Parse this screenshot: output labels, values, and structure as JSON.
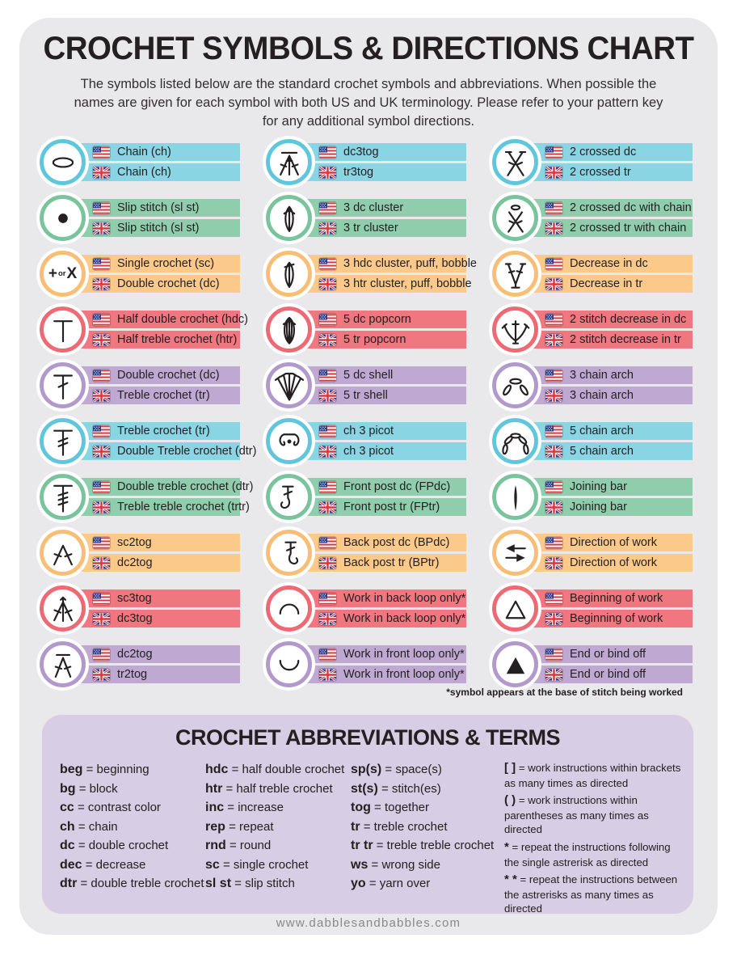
{
  "title": "CROCHET SYMBOLS & DIRECTIONS CHART",
  "subtitle": "The symbols listed below are the standard crochet symbols and abbreviations. When possible the\nnames are given for each symbol with both US and UK terminology. Please refer to your pattern key\nfor any additional symbol directions.",
  "footnote": "*symbol appears at the base of stitch being worked",
  "footer": "www.dabblesandbabbles.com",
  "plus_or_x": {
    "plus": "+",
    "or": "or",
    "x": "X"
  },
  "palette": {
    "card_bg": "#E9E8EA",
    "abbrev_bg": "#D7CDE4",
    "text": "#242021",
    "bands": {
      "blue": "#8AD5E4",
      "green": "#8FCDAC",
      "orange": "#FBCA8B",
      "red": "#F0777F",
      "purple": "#BFA9D3"
    },
    "rings": {
      "blue": "#5FC6DC",
      "green": "#79C49D",
      "orange": "#F8BE76",
      "red": "#ED6A74",
      "purple": "#B199CB"
    },
    "flag_red": "#D23A3F",
    "flag_blue": "#2D3E8C"
  },
  "symbol_columns": [
    [
      {
        "symbol": "chain",
        "color": "blue",
        "us": "Chain (ch)",
        "uk": "Chain (ch)"
      },
      {
        "symbol": "slip-stitch",
        "color": "green",
        "us": "Slip stitch (sl st)",
        "uk": "Slip stitch (sl st)"
      },
      {
        "symbol": "plus-or-x",
        "color": "orange",
        "us": "Single crochet (sc)",
        "uk": "Double crochet (dc)"
      },
      {
        "symbol": "hdc",
        "color": "red",
        "us": "Half double crochet (hdc)",
        "uk": "Half treble crochet (htr)"
      },
      {
        "symbol": "dc",
        "color": "purple",
        "us": "Double crochet (dc)",
        "uk": "Treble crochet (tr)"
      },
      {
        "symbol": "tr",
        "color": "blue",
        "us": "Treble crochet (tr)",
        "uk": "Double Treble crochet (dtr)"
      },
      {
        "symbol": "dtr",
        "color": "green",
        "us": "Double treble crochet (dtr)",
        "uk": "Treble treble crochet (trtr)"
      },
      {
        "symbol": "sc2tog",
        "color": "orange",
        "us": "sc2tog",
        "uk": "dc2tog"
      },
      {
        "symbol": "sc3tog",
        "color": "red",
        "us": "sc3tog",
        "uk": "dc3tog"
      },
      {
        "symbol": "dc2tog",
        "color": "purple",
        "us": "dc2tog",
        "uk": "tr2tog"
      }
    ],
    [
      {
        "symbol": "dc3tog",
        "color": "blue",
        "us": "dc3tog",
        "uk": "tr3tog"
      },
      {
        "symbol": "cluster",
        "color": "green",
        "us": "3 dc cluster",
        "uk": "3 tr cluster"
      },
      {
        "symbol": "puff",
        "color": "orange",
        "us": "3 hdc cluster, puff, bobble",
        "uk": "3 htr cluster, puff, bobble"
      },
      {
        "symbol": "popcorn",
        "color": "red",
        "us": "5 dc popcorn",
        "uk": "5 tr popcorn"
      },
      {
        "symbol": "shell",
        "color": "purple",
        "us": "5 dc shell",
        "uk": "5 tr shell"
      },
      {
        "symbol": "picot",
        "color": "blue",
        "us": "ch 3 picot",
        "uk": "ch 3 picot"
      },
      {
        "symbol": "front-post",
        "color": "green",
        "us": "Front post dc (FPdc)",
        "uk": "Front post tr (FPtr)"
      },
      {
        "symbol": "back-post",
        "color": "orange",
        "us": "Back post dc (BPdc)",
        "uk": "Back post tr (BPtr)"
      },
      {
        "symbol": "back-loop",
        "color": "red",
        "us": "Work in back loop only*",
        "uk": "Work in back loop only*"
      },
      {
        "symbol": "front-loop",
        "color": "purple",
        "us": "Work in front loop only*",
        "uk": "Work in front loop only*"
      }
    ],
    [
      {
        "symbol": "crossed",
        "color": "blue",
        "us": "2 crossed dc",
        "uk": "2 crossed tr"
      },
      {
        "symbol": "crossed-chain",
        "color": "green",
        "us": "2 crossed dc with chain",
        "uk": "2 crossed tr with chain"
      },
      {
        "symbol": "decrease",
        "color": "orange",
        "us": "Decrease in dc",
        "uk": "Decrease in tr"
      },
      {
        "symbol": "decrease2",
        "color": "red",
        "us": "2 stitch decrease in dc",
        "uk": "2 stitch decrease in tr"
      },
      {
        "symbol": "arch3",
        "color": "purple",
        "us": "3 chain arch",
        "uk": "3 chain arch"
      },
      {
        "symbol": "arch5",
        "color": "blue",
        "us": "5 chain arch",
        "uk": "5 chain arch"
      },
      {
        "symbol": "joining-bar",
        "color": "green",
        "us": "Joining bar",
        "uk": "Joining bar"
      },
      {
        "symbol": "direction",
        "color": "orange",
        "us": "Direction of work",
        "uk": "Direction of work"
      },
      {
        "symbol": "begin",
        "color": "red",
        "us": "Beginning of work",
        "uk": "Beginning of work"
      },
      {
        "symbol": "end",
        "color": "purple",
        "us": "End or bind off",
        "uk": "End or bind off"
      }
    ]
  ],
  "abbreviations": {
    "title": "CROCHET ABBREVIATIONS & TERMS",
    "separator": "=",
    "columns": [
      [
        {
          "abbr": "beg",
          "def": "beginning"
        },
        {
          "abbr": "bg",
          "def": "block"
        },
        {
          "abbr": "cc",
          "def": "contrast color"
        },
        {
          "abbr": "ch",
          "def": "chain"
        },
        {
          "abbr": "dc",
          "def": "double crochet"
        },
        {
          "abbr": "dec",
          "def": "decrease"
        },
        {
          "abbr": "dtr",
          "def": "double treble crochet"
        }
      ],
      [
        {
          "abbr": "hdc",
          "def": "half double crochet"
        },
        {
          "abbr": "htr",
          "def": "half treble crochet"
        },
        {
          "abbr": "inc",
          "def": "increase"
        },
        {
          "abbr": "rep",
          "def": "repeat"
        },
        {
          "abbr": "rnd",
          "def": "round"
        },
        {
          "abbr": "sc",
          "def": "single crochet"
        },
        {
          "abbr": "sl st",
          "def": "slip stitch"
        }
      ],
      [
        {
          "abbr": "sp(s)",
          "def": "space(s)"
        },
        {
          "abbr": "st(s)",
          "def": "stitch(es)"
        },
        {
          "abbr": "tog",
          "def": "together"
        },
        {
          "abbr": "tr",
          "def": "treble crochet"
        },
        {
          "abbr": "tr tr",
          "def": "treble treble crochet"
        },
        {
          "abbr": "ws",
          "def": "wrong side"
        },
        {
          "abbr": "yo",
          "def": "yarn over"
        }
      ],
      [
        {
          "abbr": "[ ]",
          "def": "work instructions within brackets as many times as directed"
        },
        {
          "abbr": "( )",
          "def": "work instructions within parentheses as many times as directed"
        },
        {
          "abbr": "*",
          "def": "repeat the instructions following the single astrerisk as directed"
        },
        {
          "abbr": "* *",
          "def": "repeat the instructions between the astrerisks as many times as directed"
        }
      ]
    ]
  }
}
